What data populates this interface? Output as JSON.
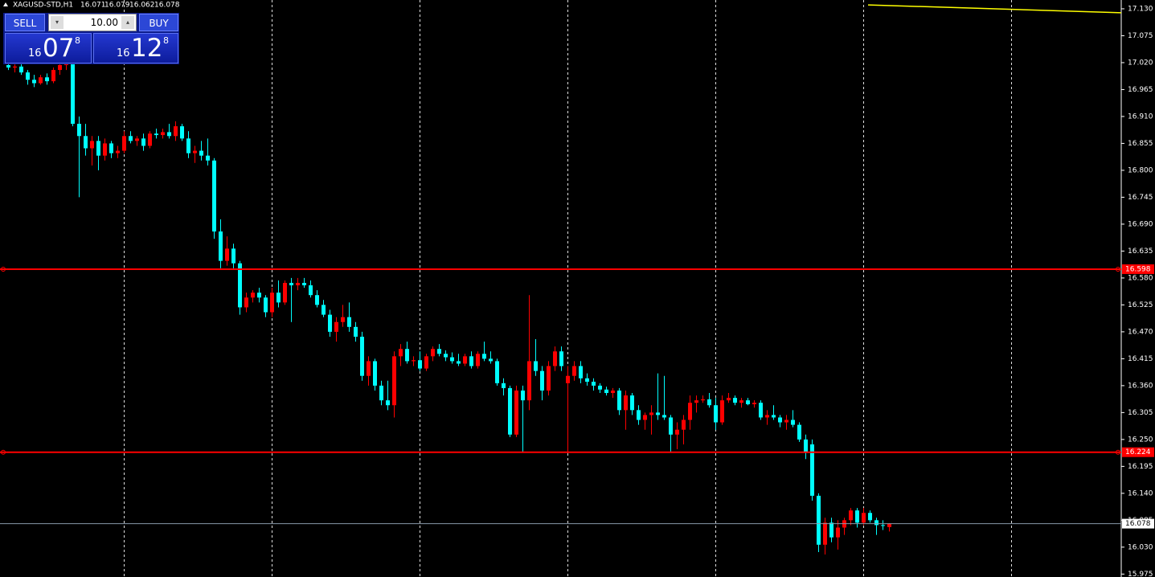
{
  "chart_data": {
    "type": "candlestick",
    "title": "XAGUSD-STD,H1",
    "open": [
      17.015,
      17.01,
      17.012,
      17.0,
      16.985,
      16.978,
      16.99,
      16.982,
      17.005,
      17.015,
      17.02,
      16.895,
      16.87,
      16.845,
      16.86,
      16.83,
      16.855,
      16.835,
      16.84,
      16.87,
      16.86,
      16.865,
      16.85,
      16.875,
      16.872,
      16.878,
      16.87,
      16.89,
      16.865,
      16.835,
      16.84,
      16.83,
      16.82,
      16.675,
      16.615,
      16.64,
      16.61,
      16.52,
      16.54,
      16.55,
      16.54,
      16.51,
      16.55,
      16.53,
      16.57,
      16.565,
      16.57,
      16.565,
      16.545,
      16.525,
      16.505,
      16.47,
      16.49,
      16.5,
      16.48,
      16.46,
      16.38,
      16.41,
      16.36,
      16.33,
      16.32,
      16.42,
      16.435,
      16.41,
      16.412,
      16.395,
      16.42,
      16.435,
      16.425,
      16.418,
      16.41,
      16.405,
      16.42,
      16.4,
      16.425,
      16.415,
      16.41,
      16.365,
      16.355,
      16.26,
      16.35,
      16.33,
      16.41,
      16.39,
      16.35,
      16.4,
      16.43,
      16.365,
      16.38,
      16.4,
      16.375,
      16.368,
      16.36,
      16.352,
      16.345,
      16.35,
      16.31,
      16.34,
      16.31,
      16.29,
      16.3,
      16.305,
      16.3,
      16.295,
      16.26,
      16.27,
      16.29,
      16.325,
      16.33,
      16.332,
      16.32,
      16.285,
      16.33,
      16.335,
      16.325,
      16.33,
      16.322,
      16.325,
      16.295,
      16.3,
      16.295,
      16.285,
      16.29,
      16.28,
      16.25,
      16.24,
      16.135,
      16.035,
      16.08,
      16.05,
      16.07,
      16.085,
      16.105,
      16.08,
      16.1,
      16.085,
      16.075,
      16.071
    ],
    "high": [
      17.025,
      17.02,
      17.018,
      17.005,
      16.995,
      16.995,
      16.998,
      17.01,
      17.02,
      17.03,
      17.03,
      16.91,
      16.895,
      16.87,
      16.87,
      16.865,
      16.86,
      16.85,
      16.88,
      16.88,
      16.87,
      16.875,
      16.88,
      16.885,
      16.885,
      16.895,
      16.9,
      16.895,
      16.88,
      16.85,
      16.86,
      16.865,
      16.825,
      16.7,
      16.665,
      16.65,
      16.615,
      16.55,
      16.555,
      16.56,
      16.545,
      16.56,
      16.575,
      16.575,
      16.58,
      16.58,
      16.58,
      16.575,
      16.555,
      16.535,
      16.515,
      16.5,
      16.525,
      16.53,
      16.49,
      16.47,
      16.42,
      16.415,
      16.37,
      16.37,
      16.43,
      16.445,
      16.45,
      16.42,
      16.43,
      16.425,
      16.44,
      16.445,
      16.432,
      16.428,
      16.425,
      16.425,
      16.43,
      16.43,
      16.45,
      16.43,
      16.415,
      16.375,
      16.36,
      16.36,
      16.36,
      16.545,
      16.455,
      16.4,
      16.41,
      16.44,
      16.44,
      16.4,
      16.41,
      16.41,
      16.385,
      16.375,
      16.365,
      16.358,
      16.355,
      16.355,
      16.35,
      16.345,
      16.32,
      16.305,
      16.32,
      16.385,
      16.38,
      16.3,
      16.285,
      16.3,
      16.34,
      16.34,
      16.34,
      16.345,
      16.335,
      16.34,
      16.345,
      16.34,
      16.335,
      16.335,
      16.33,
      16.33,
      16.31,
      16.32,
      16.3,
      16.3,
      16.31,
      16.285,
      16.26,
      16.25,
      16.14,
      16.09,
      16.09,
      16.085,
      16.09,
      16.11,
      16.11,
      16.11,
      16.105,
      16.09,
      16.085,
      16.079
    ],
    "low": [
      17.005,
      17.0,
      16.995,
      16.975,
      16.97,
      16.975,
      16.975,
      16.978,
      16.995,
      17.005,
      16.89,
      16.745,
      16.83,
      16.81,
      16.8,
      16.82,
      16.825,
      16.825,
      16.835,
      16.855,
      16.85,
      16.84,
      16.845,
      16.865,
      16.865,
      16.865,
      16.86,
      16.86,
      16.825,
      16.815,
      16.82,
      16.81,
      16.66,
      16.6,
      16.605,
      16.6,
      16.505,
      16.51,
      16.53,
      16.53,
      16.5,
      16.5,
      16.52,
      16.525,
      16.49,
      16.555,
      16.56,
      16.54,
      16.52,
      16.5,
      16.46,
      16.45,
      16.48,
      16.47,
      16.45,
      16.37,
      16.36,
      16.35,
      16.32,
      16.31,
      16.295,
      16.4,
      16.405,
      16.4,
      16.39,
      16.39,
      16.41,
      16.42,
      16.41,
      16.405,
      16.4,
      16.4,
      16.395,
      16.395,
      16.41,
      16.405,
      16.36,
      16.34,
      16.255,
      16.255,
      16.225,
      16.31,
      16.38,
      16.33,
      16.34,
      16.39,
      16.39,
      16.222,
      16.37,
      16.365,
      16.36,
      16.35,
      16.345,
      16.34,
      16.335,
      16.3,
      16.27,
      16.3,
      16.28,
      16.27,
      16.26,
      16.29,
      16.29,
      16.225,
      16.23,
      16.24,
      16.27,
      16.305,
      16.325,
      16.315,
      16.27,
      16.28,
      16.325,
      16.32,
      16.315,
      16.32,
      16.315,
      16.29,
      16.28,
      16.29,
      16.275,
      16.27,
      16.275,
      16.245,
      16.21,
      16.125,
      16.02,
      16.015,
      16.04,
      16.025,
      16.055,
      16.075,
      16.07,
      16.075,
      16.08,
      16.055,
      16.065,
      16.062
    ],
    "close": [
      17.01,
      17.012,
      17.0,
      16.985,
      16.978,
      16.99,
      16.982,
      17.005,
      17.015,
      17.02,
      16.895,
      16.87,
      16.845,
      16.86,
      16.83,
      16.855,
      16.835,
      16.84,
      16.87,
      16.86,
      16.865,
      16.85,
      16.875,
      16.872,
      16.878,
      16.87,
      16.89,
      16.865,
      16.835,
      16.84,
      16.83,
      16.82,
      16.675,
      16.615,
      16.64,
      16.61,
      16.52,
      16.54,
      16.55,
      16.54,
      16.51,
      16.55,
      16.53,
      16.57,
      16.565,
      16.57,
      16.565,
      16.545,
      16.525,
      16.505,
      16.47,
      16.49,
      16.5,
      16.48,
      16.46,
      16.38,
      16.41,
      16.36,
      16.33,
      16.32,
      16.42,
      16.435,
      16.41,
      16.412,
      16.395,
      16.42,
      16.435,
      16.425,
      16.418,
      16.41,
      16.405,
      16.42,
      16.4,
      16.425,
      16.415,
      16.41,
      16.365,
      16.355,
      16.26,
      16.35,
      16.33,
      16.41,
      16.39,
      16.35,
      16.4,
      16.43,
      16.4,
      16.38,
      16.4,
      16.375,
      16.368,
      16.36,
      16.352,
      16.345,
      16.35,
      16.31,
      16.34,
      16.31,
      16.29,
      16.3,
      16.305,
      16.3,
      16.295,
      16.26,
      16.27,
      16.29,
      16.325,
      16.33,
      16.332,
      16.32,
      16.285,
      16.33,
      16.335,
      16.325,
      16.33,
      16.322,
      16.325,
      16.295,
      16.3,
      16.295,
      16.285,
      16.29,
      16.28,
      16.25,
      16.225,
      16.135,
      16.035,
      16.08,
      16.05,
      16.07,
      16.085,
      16.105,
      16.08,
      16.1,
      16.085,
      16.075,
      16.075,
      16.078
    ],
    "up_color": "#ff0000",
    "down_color": "#00ffff",
    "ylim": [
      15.969,
      17.148
    ],
    "yticks": [
      {
        "value": 17.13,
        "label": "17.130"
      },
      17.075,
      {
        "value": 17.02,
        "label": "17.020"
      },
      16.965,
      {
        "value": 16.91,
        "label": "16.910"
      },
      16.855,
      {
        "value": 16.8,
        "label": "16.800"
      },
      16.745,
      {
        "value": 16.69,
        "label": "16.690"
      },
      16.635,
      {
        "value": 16.58,
        "label": "16.580"
      },
      16.525,
      {
        "value": 16.47,
        "label": "16.470"
      },
      16.415,
      {
        "value": 16.36,
        "label": "16.360"
      },
      16.305,
      {
        "value": 16.25,
        "label": "16.250"
      },
      16.195,
      {
        "value": 16.14,
        "label": "16.140"
      },
      16.085,
      {
        "value": 16.03,
        "label": "16.030"
      },
      15.975
    ],
    "grid": true,
    "levels": [
      {
        "value": 16.598,
        "color": "#ff0000"
      },
      {
        "value": 16.224,
        "color": "#ff0000"
      }
    ],
    "bid": 16.078,
    "trendline": {
      "x": [
        133.75,
        173.125
      ],
      "values": [
        17.138,
        17.122
      ],
      "color": "#ffff00"
    }
  },
  "trade_panel": {
    "sell": "SELL",
    "buy": "BUY",
    "volume": "10.00",
    "sell_price": {
      "big": "16",
      "main": "07",
      "small": "8"
    },
    "buy_price": {
      "big": "16",
      "main": "12",
      "small": "8"
    }
  }
}
